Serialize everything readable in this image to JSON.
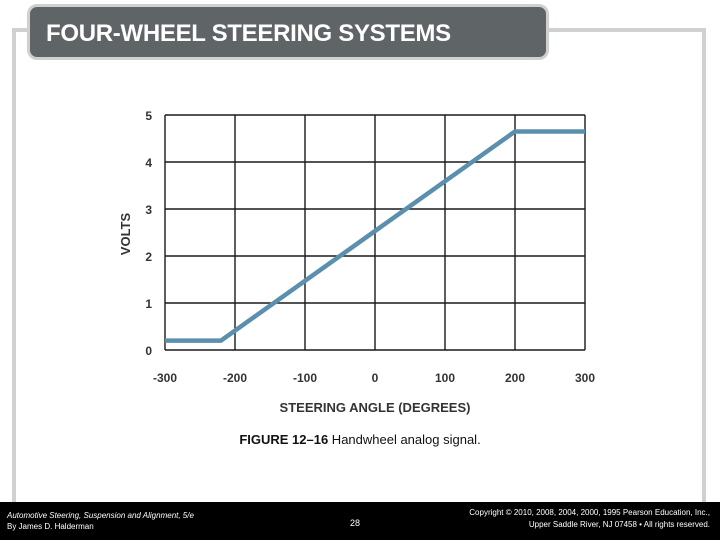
{
  "slide": {
    "title": "FOUR-WHEEL STEERING SYSTEMS",
    "caption_label": "FIGURE 12–16",
    "caption_text": " Handwheel analog signal."
  },
  "footer": {
    "book_title": "Automotive Steering, Suspension and Alignment, 5/e",
    "author": "By James D. Halderman",
    "page_number": "28",
    "copyright_line1": "Copyright © 2010, 2008, 2004, 2000, 1995 Pearson Education, Inc.,",
    "copyright_line2": "Upper Saddle River, NJ 07458 • All rights reserved."
  },
  "chart_data": {
    "type": "line",
    "xlabel": "STEERING ANGLE (DEGREES)",
    "ylabel": "VOLTS",
    "xlim": [
      -300,
      300
    ],
    "ylim": [
      0,
      5
    ],
    "xticks": [
      "-300",
      "-200",
      "-100",
      "0",
      "100",
      "200",
      "300"
    ],
    "yticks": [
      "0",
      "1",
      "2",
      "3",
      "4",
      "5"
    ],
    "grid": true,
    "series": [
      {
        "values": [
          [
            -300,
            0.2
          ],
          [
            -220,
            0.2
          ],
          [
            200,
            4.65
          ],
          [
            300,
            4.65
          ]
        ]
      }
    ],
    "colors": {
      "line": "#5b8fae",
      "grid": "#1a1a1a"
    }
  }
}
